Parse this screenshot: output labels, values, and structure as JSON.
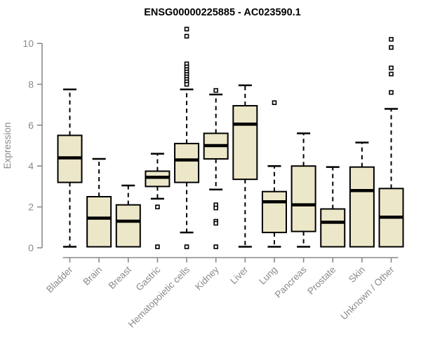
{
  "chart_data": {
    "type": "box",
    "title": "ENSG00000225885 - AC023590.1",
    "xlabel": "",
    "ylabel": "Expression",
    "ylim": [
      0,
      10
    ],
    "yticks": [
      0,
      2,
      4,
      6,
      8,
      10
    ],
    "grid": false,
    "legend": "none",
    "categories": [
      "Bladder",
      "Brain",
      "Breast",
      "Gastric",
      "Hematopoietic cells",
      "Kidney",
      "Liver",
      "Lung",
      "Pancreas",
      "Prostate",
      "Skin",
      "Unknown / Other"
    ],
    "series": [
      {
        "name": "Bladder",
        "whisker_low": 0.05,
        "q1": 3.2,
        "median": 4.4,
        "q3": 5.5,
        "whisker_high": 7.75,
        "outliers": []
      },
      {
        "name": "Brain",
        "whisker_low": null,
        "q1": 0.05,
        "median": 1.45,
        "q3": 2.5,
        "whisker_high": 4.35,
        "outliers": []
      },
      {
        "name": "Breast",
        "whisker_low": null,
        "q1": 0.05,
        "median": 1.3,
        "q3": 2.1,
        "whisker_high": 3.05,
        "outliers": []
      },
      {
        "name": "Gastric",
        "whisker_low": 2.4,
        "q1": 3.0,
        "median": 3.45,
        "q3": 3.75,
        "whisker_high": 4.6,
        "outliers": [
          2.0,
          0.05
        ]
      },
      {
        "name": "Hematopoietic cells",
        "whisker_low": 0.75,
        "q1": 3.2,
        "median": 4.3,
        "q3": 5.1,
        "whisker_high": 7.75,
        "outliers": [
          10.7,
          10.35,
          9.0,
          8.85,
          8.72,
          8.6,
          8.48,
          8.36,
          8.24,
          8.12,
          8.0,
          0.05
        ]
      },
      {
        "name": "Kidney",
        "whisker_low": 2.85,
        "q1": 4.35,
        "median": 5.0,
        "q3": 5.6,
        "whisker_high": 7.5,
        "outliers": [
          7.7,
          2.1,
          1.95,
          1.3,
          1.2,
          0.05
        ]
      },
      {
        "name": "Liver",
        "whisker_low": 0.05,
        "q1": 3.35,
        "median": 6.05,
        "q3": 6.95,
        "whisker_high": 7.95,
        "outliers": []
      },
      {
        "name": "Lung",
        "whisker_low": 0.05,
        "q1": 0.75,
        "median": 2.25,
        "q3": 2.75,
        "whisker_high": 4.0,
        "outliers": [
          7.1
        ]
      },
      {
        "name": "Pancreas",
        "whisker_low": 0.05,
        "q1": 0.8,
        "median": 2.1,
        "q3": 4.0,
        "whisker_high": 5.6,
        "outliers": []
      },
      {
        "name": "Prostate",
        "whisker_low": null,
        "q1": 0.05,
        "median": 1.25,
        "q3": 1.9,
        "whisker_high": 3.95,
        "outliers": []
      },
      {
        "name": "Skin",
        "whisker_low": null,
        "q1": 0.05,
        "median": 2.8,
        "q3": 3.95,
        "whisker_high": 5.15,
        "outliers": []
      },
      {
        "name": "Unknown / Other",
        "whisker_low": null,
        "q1": 0.05,
        "median": 1.5,
        "q3": 2.9,
        "whisker_high": 6.8,
        "outliers": [
          10.2,
          9.8,
          8.8,
          8.5,
          7.6
        ]
      }
    ],
    "colors": {
      "box_fill": "#ede7c9",
      "box_border": "#000000",
      "median": "#000000",
      "whisker": "#000000",
      "outlier": "#000000",
      "axis": "#8a8a8a",
      "tick_label": "#8a8a8a",
      "title": "#000000",
      "background": "#ffffff"
    }
  }
}
